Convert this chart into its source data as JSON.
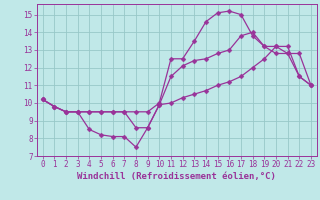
{
  "xlabel": "Windchill (Refroidissement éolien,°C)",
  "bg_color": "#c0e8e8",
  "grid_color": "#98c8c8",
  "line_color": "#993399",
  "marker": "D",
  "markersize": 2.5,
  "linewidth": 0.9,
  "xlim": [
    -0.5,
    23.5
  ],
  "ylim": [
    7,
    15.6
  ],
  "xticks": [
    0,
    1,
    2,
    3,
    4,
    5,
    6,
    7,
    8,
    9,
    10,
    11,
    12,
    13,
    14,
    15,
    16,
    17,
    18,
    19,
    20,
    21,
    22,
    23
  ],
  "yticks": [
    7,
    8,
    9,
    10,
    11,
    12,
    13,
    14,
    15
  ],
  "curves": [
    [
      10.2,
      9.8,
      9.5,
      9.5,
      8.5,
      8.2,
      8.1,
      8.1,
      7.5,
      8.6,
      9.9,
      10.0,
      10.3,
      10.5,
      10.7,
      11.0,
      11.2,
      11.5,
      12.0,
      12.5,
      13.2,
      13.2,
      11.5,
      11.0
    ],
    [
      10.2,
      9.8,
      9.5,
      9.5,
      9.5,
      9.5,
      9.5,
      9.5,
      9.5,
      9.5,
      10.0,
      12.5,
      12.5,
      13.5,
      14.6,
      15.1,
      15.2,
      15.0,
      13.8,
      13.2,
      12.8,
      12.8,
      11.5,
      11.0
    ],
    [
      10.2,
      9.8,
      9.5,
      9.5,
      9.5,
      9.5,
      9.5,
      9.5,
      8.6,
      8.6,
      9.9,
      11.5,
      12.1,
      12.4,
      12.5,
      12.8,
      13.0,
      13.8,
      14.0,
      13.2,
      13.2,
      12.8,
      12.8,
      11.0
    ]
  ],
  "font_color": "#993399",
  "tick_fontsize": 5.5,
  "label_fontsize": 6.5
}
